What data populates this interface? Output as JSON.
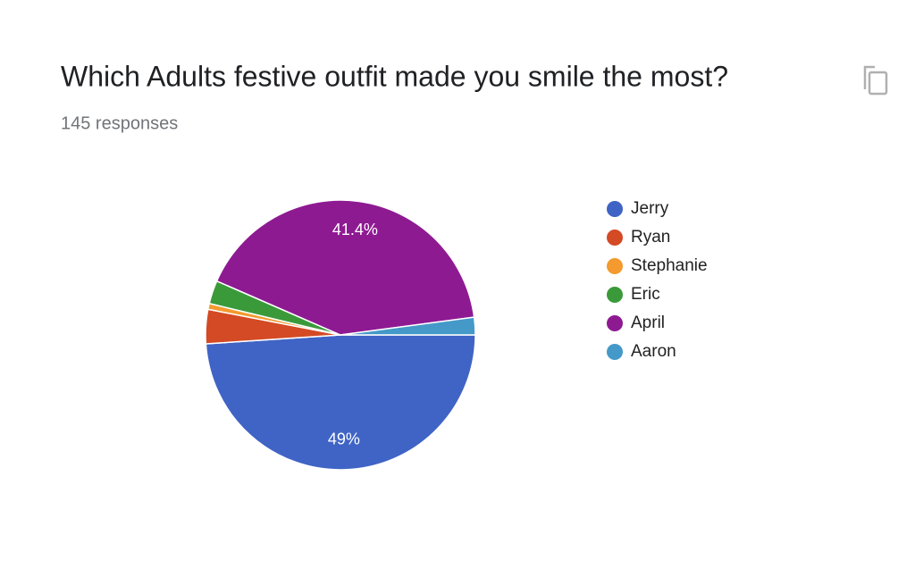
{
  "chart_data": {
    "type": "pie",
    "title": "Which Adults festive outfit made you smile the most?",
    "subtitle": "145 responses",
    "categories": [
      "Jerry",
      "Ryan",
      "Stephanie",
      "Eric",
      "April",
      "Aaron"
    ],
    "values": [
      49,
      4.1,
      0.7,
      2.8,
      41.4,
      2.1
    ],
    "value_labels": [
      "49%",
      null,
      null,
      null,
      "41.4%",
      null
    ],
    "colors": [
      "#3f64c5",
      "#d34a25",
      "#f49a2e",
      "#3a9a3a",
      "#8e1a92",
      "#4599c8"
    ],
    "legend": "right"
  }
}
